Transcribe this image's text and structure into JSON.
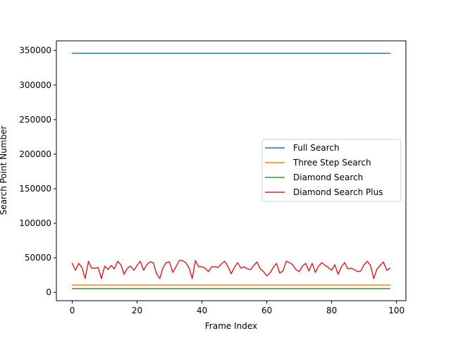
{
  "chart_data": {
    "type": "line",
    "title": "",
    "xlabel": "Frame Index",
    "ylabel": "Search Point Number",
    "xlim": [
      -4.9,
      102.9
    ],
    "ylim": [
      -12000,
      364000
    ],
    "xticks": [
      0,
      20,
      40,
      60,
      80,
      100
    ],
    "xtick_labels": [
      "0",
      "20",
      "40",
      "60",
      "80",
      "100"
    ],
    "yticks": [
      0,
      50000,
      100000,
      150000,
      200000,
      250000,
      300000,
      350000
    ],
    "ytick_labels": [
      "0",
      "50000",
      "100000",
      "150000",
      "200000",
      "250000",
      "300000",
      "350000"
    ],
    "grid": false,
    "legend_position": "center-right",
    "x": [
      0,
      1,
      2,
      3,
      4,
      5,
      6,
      7,
      8,
      9,
      10,
      11,
      12,
      13,
      14,
      15,
      16,
      17,
      18,
      19,
      20,
      21,
      22,
      23,
      24,
      25,
      26,
      27,
      28,
      29,
      30,
      31,
      32,
      33,
      34,
      35,
      36,
      37,
      38,
      39,
      40,
      41,
      42,
      43,
      44,
      45,
      46,
      47,
      48,
      49,
      50,
      51,
      52,
      53,
      54,
      55,
      56,
      57,
      58,
      59,
      60,
      61,
      62,
      63,
      64,
      65,
      66,
      67,
      68,
      69,
      70,
      71,
      72,
      73,
      74,
      75,
      76,
      77,
      78,
      79,
      80,
      81,
      82,
      83,
      84,
      85,
      86,
      87,
      88,
      89,
      90,
      91,
      92,
      93,
      94,
      95,
      96,
      97,
      98
    ],
    "series": [
      {
        "name": "Full Search",
        "color": "#1f77b4",
        "constant": 346000
      },
      {
        "name": "Three Step Search",
        "color": "#ff7f0e",
        "constant": 10500
      },
      {
        "name": "Diamond Search",
        "color": "#2ca02c",
        "constant": 5500
      },
      {
        "name": "Diamond Search Plus",
        "color": "#d62728",
        "values": [
          42000,
          32000,
          42000,
          36000,
          20000,
          45000,
          35000,
          35000,
          36000,
          20000,
          38000,
          33000,
          39000,
          34000,
          45000,
          40000,
          26000,
          35000,
          38000,
          32000,
          39000,
          45000,
          32000,
          40000,
          44000,
          43000,
          27000,
          20000,
          36000,
          43000,
          44000,
          29000,
          37000,
          46000,
          46000,
          43000,
          36000,
          20000,
          46000,
          37000,
          37000,
          35000,
          30000,
          37000,
          37000,
          36000,
          41000,
          45000,
          38000,
          27000,
          36000,
          43000,
          35000,
          37000,
          34000,
          33000,
          39000,
          44000,
          34000,
          30000,
          24000,
          28000,
          36000,
          42000,
          28000,
          31000,
          45000,
          43000,
          40000,
          33000,
          30000,
          38000,
          42000,
          31000,
          42000,
          29000,
          38000,
          43000,
          39000,
          36000,
          32000,
          40000,
          26000,
          37000,
          43000,
          34000,
          35000,
          33000,
          30000,
          31000,
          40000,
          45000,
          39000,
          20000,
          34000,
          39000,
          44000,
          32000,
          35000
        ]
      }
    ]
  }
}
